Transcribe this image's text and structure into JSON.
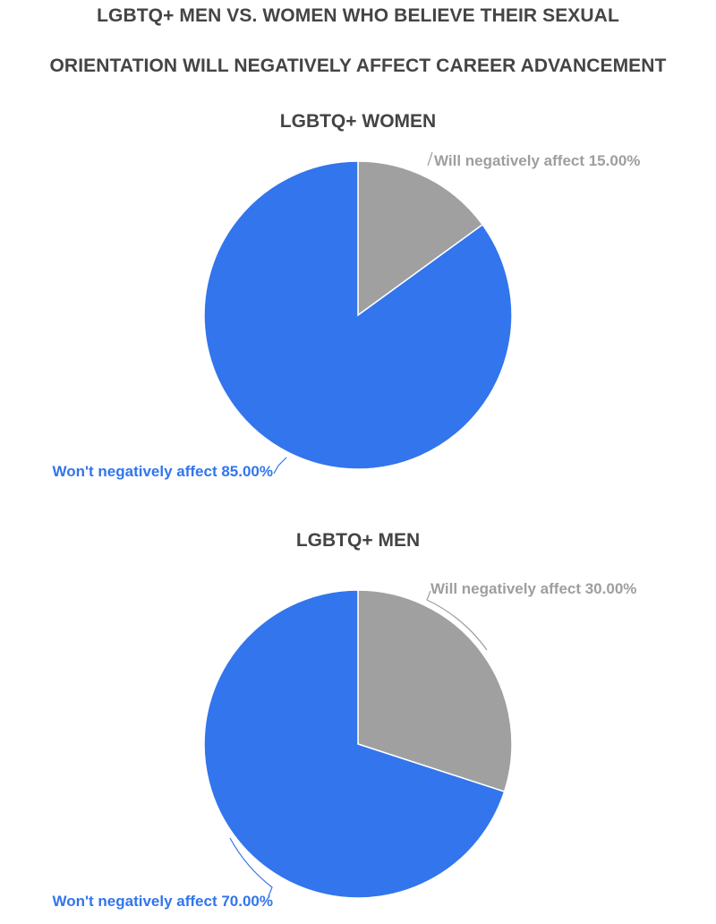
{
  "title": {
    "line1": "LGBTQ+ MEN VS. WOMEN WHO BELIEVE THEIR SEXUAL",
    "line2": "ORIENTATION WILL NEGATIVELY AFFECT CAREER ADVANCEMENT"
  },
  "colors": {
    "will": "#a0a0a0",
    "wont": "#3275ec",
    "title": "#444444",
    "will_label": "#9e9e9e",
    "wont_label": "#3275ec"
  },
  "chart_data": [
    {
      "type": "pie",
      "title": "LGBTQ+ WOMEN",
      "slices": [
        {
          "label": "Will negatively affect",
          "value": 15.0,
          "display": "Will negatively affect 15.00%",
          "color": "#a0a0a0"
        },
        {
          "label": "Won't negatively affect",
          "value": 85.0,
          "display": "Won't negatively affect 85.00%",
          "color": "#3275ec"
        }
      ]
    },
    {
      "type": "pie",
      "title": "LGBTQ+ MEN",
      "slices": [
        {
          "label": "Will negatively affect",
          "value": 30.0,
          "display": "Will negatively affect 30.00%",
          "color": "#a0a0a0"
        },
        {
          "label": "Won't negatively affect",
          "value": 70.0,
          "display": "Won't negatively affect 70.00%",
          "color": "#3275ec"
        }
      ]
    }
  ]
}
